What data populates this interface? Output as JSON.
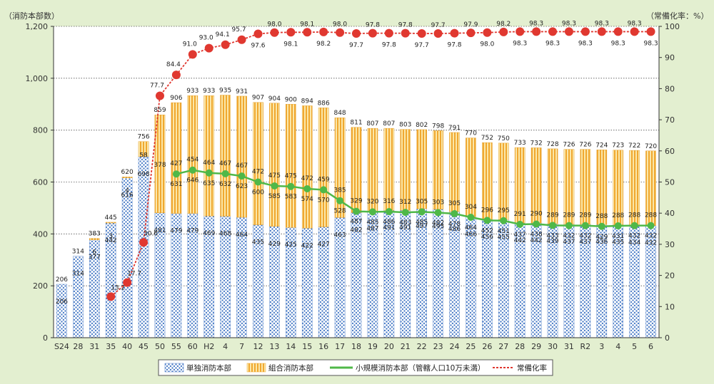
{
  "chart_data": {
    "type": "bar",
    "left_axis_label": "（消防本部数）",
    "right_axis_label": "（常備化率：%）",
    "categories": [
      "S24",
      "28",
      "31",
      "35",
      "40",
      "45",
      "50",
      "55",
      "60",
      "H2",
      "4",
      "7",
      "12",
      "13",
      "14",
      "15",
      "16",
      "17",
      "18",
      "19",
      "20",
      "21",
      "22",
      "23",
      "24",
      "25",
      "26",
      "27",
      "28",
      "29",
      "30",
      "31",
      "R2",
      "3",
      "4",
      "5",
      "6"
    ],
    "left_ylim": [
      0,
      1200
    ],
    "left_ticks": [
      "0",
      "200",
      "400",
      "600",
      "800",
      "1,000",
      "1,200"
    ],
    "right_ylim": [
      0,
      100
    ],
    "right_ticks": [
      "0",
      "10",
      "20",
      "30",
      "40",
      "50",
      "60",
      "70",
      "80",
      "90",
      "100"
    ],
    "grid": "dotted horizontal lines at left-axis ticks",
    "series": [
      {
        "name": "単独消防本部",
        "type": "stacked-bar",
        "color": "#4f7fc8",
        "values": [
          206,
          314,
          377,
          442,
          616,
          698,
          481,
          479,
          479,
          469,
          468,
          464,
          435,
          429,
          425,
          422,
          427,
          463,
          482,
          487,
          491,
          491,
          497,
          495,
          486,
          466,
          456,
          455,
          442,
          442,
          439,
          437,
          437,
          436,
          435,
          434,
          432
        ]
      },
      {
        "name": "組合消防本部",
        "type": "stacked-bar",
        "color": "#f0a830",
        "values": [
          null,
          null,
          6,
          3,
          4,
          58,
          378,
          427,
          454,
          464,
          467,
          467,
          472,
          475,
          475,
          472,
          459,
          385,
          329,
          320,
          316,
          312,
          305,
          303,
          305,
          304,
          296,
          295,
          291,
          290,
          289,
          289,
          289,
          288,
          288,
          288,
          288
        ]
      },
      {
        "name": "小規模消防本部（管轄人口10万未満）",
        "type": "line",
        "color": "#4fb848",
        "values": [
          null,
          null,
          null,
          null,
          null,
          null,
          null,
          631,
          646,
          635,
          632,
          623,
          600,
          585,
          583,
          574,
          570,
          528,
          487,
          485,
          486,
          483,
          485,
          482,
          478,
          464,
          452,
          451,
          437,
          438,
          433,
          432,
          432,
          429,
          431,
          432,
          432
        ]
      },
      {
        "name": "常備化率",
        "type": "line",
        "axis": "right",
        "color": "#e03830",
        "values": [
          null,
          null,
          null,
          13.2,
          17.7,
          30.6,
          77.7,
          84.4,
          91.0,
          93.0,
          94.1,
          95.7,
          97.6,
          98.0,
          98.1,
          98.1,
          98.2,
          98.0,
          97.7,
          97.8,
          97.8,
          97.8,
          97.7,
          97.7,
          97.8,
          97.9,
          98.0,
          98.2,
          98.3,
          98.3,
          98.3,
          98.3,
          98.3,
          98.3,
          98.3,
          98.3,
          98.3
        ]
      }
    ],
    "totals": [
      206,
      314,
      383,
      445,
      620,
      756,
      859,
      906,
      933,
      933,
      935,
      931,
      907,
      904,
      900,
      894,
      886,
      848,
      811,
      807,
      807,
      803,
      802,
      798,
      791,
      770,
      752,
      750,
      733,
      732,
      728,
      726,
      726,
      724,
      723,
      722,
      720
    ]
  },
  "legend": {
    "single": "単独消防本部",
    "union": "組合消防本部",
    "small": "小規模消防本部（管轄人口10万未満）",
    "rate": "常備化率"
  }
}
